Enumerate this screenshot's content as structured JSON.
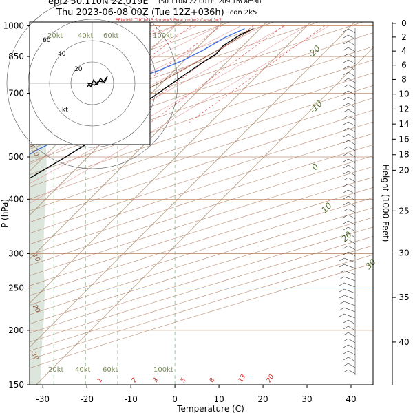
{
  "header": {
    "line1": "eprz 50.110N 22.019E",
    "line1_small": "(50.110N 22.00TE, 209.1m amsl)",
    "line2": "Thu 2023-06-08 00Z (Tue 12Z+036h)",
    "model": "icon 2k5",
    "indices": "PEI=991 Tt(C)=15 Show=5 Pwat(cm)=2 Cape(J)=7"
  },
  "chart_data": {
    "type": "line",
    "xlabel": "Temperature (C)",
    "ylabel": "P (hPa)",
    "y2label": "Height (1000 Feet)",
    "xlim": [
      -33,
      45
    ],
    "ylim": [
      1020,
      150
    ],
    "x_ticks": [
      -30,
      -20,
      -10,
      0,
      10,
      20,
      30,
      40
    ],
    "p_ticks": [
      150,
      200,
      250,
      300,
      400,
      500,
      700,
      850,
      1000
    ],
    "height_ticks": [
      0,
      2,
      4,
      6,
      8,
      10,
      12,
      14,
      16,
      18,
      20,
      25,
      30,
      35,
      40
    ],
    "height_tick_pressure": [
      1013,
      942,
      875,
      812,
      753,
      697,
      644,
      595,
      549,
      506,
      466,
      376,
      301,
      238,
      188
    ],
    "skew_isotherm_labels": [
      "-20",
      "-10",
      "0",
      "10",
      "20",
      "30"
    ],
    "mixing_ratio_labels": [
      "1",
      "2",
      "3",
      "5",
      "8",
      "13",
      "20"
    ],
    "adiabat_labels": [
      "10",
      "-10",
      "-20",
      "-30"
    ],
    "series": [
      {
        "name": "Temperature",
        "color": "#000000",
        "points": [
          [
            18.5,
            985
          ],
          [
            16.8,
            950
          ],
          [
            15.5,
            900
          ],
          [
            15.8,
            860
          ],
          [
            14.8,
            830
          ],
          [
            13.5,
            780
          ],
          [
            12.0,
            720
          ],
          [
            10.2,
            650
          ],
          [
            8.5,
            600
          ],
          [
            8.0,
            560
          ],
          [
            5.0,
            500
          ],
          [
            0.5,
            430
          ],
          [
            -3.5,
            380
          ],
          [
            -8.5,
            330
          ],
          [
            -14.0,
            290
          ],
          [
            -20.0,
            255
          ],
          [
            -25.0,
            232
          ],
          [
            -33.5,
            215
          ],
          [
            -37.0,
            205
          ],
          [
            -41.0,
            188
          ],
          [
            -45.0,
            170
          ],
          [
            -48.5,
            150
          ]
        ]
      },
      {
        "name": "Dewpoint",
        "color": "#4472dd",
        "points": [
          [
            16.5,
            985
          ],
          [
            14.0,
            940
          ],
          [
            12.0,
            880
          ],
          [
            9.5,
            830
          ],
          [
            6.5,
            790
          ],
          [
            3.0,
            755
          ],
          [
            1.5,
            730
          ],
          [
            3.0,
            700
          ],
          [
            6.5,
            675
          ],
          [
            4.0,
            650
          ],
          [
            5.5,
            620
          ],
          [
            1.5,
            600
          ],
          [
            1.0,
            570
          ],
          [
            -3.0,
            520
          ],
          [
            -6.0,
            470
          ],
          [
            -14.5,
            430
          ],
          [
            -18.0,
            400
          ],
          [
            -16.0,
            370
          ],
          [
            -12.5,
            350
          ],
          [
            -15.0,
            325
          ],
          [
            -18.5,
            300
          ],
          [
            -22.0,
            275
          ],
          [
            -27.0,
            250
          ],
          [
            -33.0,
            225
          ],
          [
            -38.0,
            205
          ],
          [
            -42.5,
            180
          ],
          [
            -46.5,
            150
          ]
        ]
      },
      {
        "name": "Parcel",
        "color": "#8a5a3c",
        "points": [
          [
            18.5,
            985
          ],
          [
            16.0,
            900
          ],
          [
            13.0,
            820
          ],
          [
            9.5,
            740
          ],
          [
            5.0,
            660
          ],
          [
            -1.5,
            570
          ],
          [
            -10.0,
            480
          ],
          [
            -20.0,
            400
          ],
          [
            -30.0,
            335
          ],
          [
            -40.0,
            285
          ],
          [
            -48.0,
            250
          ]
        ]
      }
    ],
    "hodograph": {
      "rings_kt": [
        20,
        40,
        60
      ],
      "ring_labels": [
        "20",
        "40",
        "60"
      ],
      "units_label": "kt"
    },
    "wind_axis_labels": [
      "20kt",
      "40kt",
      "60kt",
      "100kt"
    ]
  },
  "colors": {
    "temperature": "#000000",
    "dewpoint": "#4472dd",
    "parcel": "#8a5a3c",
    "isotherm": "#a08060",
    "dry_adiabat": "#a06040",
    "moist_adiabat": "#e07070",
    "mixing_ratio": "#e05050",
    "isobar": "#c09070",
    "skew_label": "#507030"
  }
}
